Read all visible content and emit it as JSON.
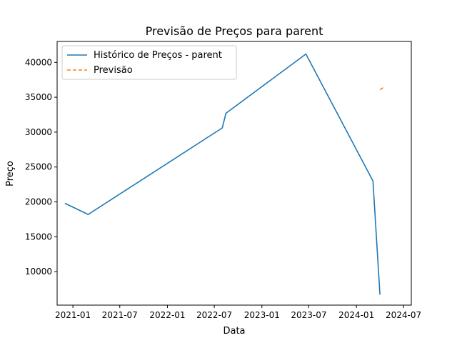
{
  "chart_data": {
    "type": "line",
    "title": "Previsão de Preços para parent",
    "xlabel": "Data",
    "ylabel": "Preço",
    "x_range": [
      "2020-11-01",
      "2024-07-31"
    ],
    "ylim": [
      5200,
      43000
    ],
    "x_ticks": [
      {
        "date": "2021-01-01",
        "label": "2021-01"
      },
      {
        "date": "2021-07-01",
        "label": "2021-07"
      },
      {
        "date": "2022-01-01",
        "label": "2022-01"
      },
      {
        "date": "2022-07-01",
        "label": "2022-07"
      },
      {
        "date": "2023-01-01",
        "label": "2023-01"
      },
      {
        "date": "2023-07-01",
        "label": "2023-07"
      },
      {
        "date": "2024-01-01",
        "label": "2024-01"
      },
      {
        "date": "2024-07-01",
        "label": "2024-07"
      }
    ],
    "y_ticks": [
      10000,
      15000,
      20000,
      25000,
      30000,
      35000,
      40000
    ],
    "grid": false,
    "legend_position": "top-left",
    "series": [
      {
        "name": "Histórico de Preços - parent",
        "color": "#1f77b4",
        "style": "solid",
        "points": [
          {
            "date": "2020-12-01",
            "y": 19800
          },
          {
            "date": "2021-03-01",
            "y": 18200
          },
          {
            "date": "2022-08-01",
            "y": 30600
          },
          {
            "date": "2022-08-15",
            "y": 32700
          },
          {
            "date": "2023-06-20",
            "y": 41200
          },
          {
            "date": "2024-03-05",
            "y": 23000
          },
          {
            "date": "2024-04-01",
            "y": 6700
          }
        ]
      },
      {
        "name": "Previsão",
        "color": "#ff7f0e",
        "style": "dashed",
        "points": [
          {
            "date": "2024-04-01",
            "y": 36100
          },
          {
            "date": "2024-04-15",
            "y": 36400
          }
        ]
      }
    ]
  }
}
